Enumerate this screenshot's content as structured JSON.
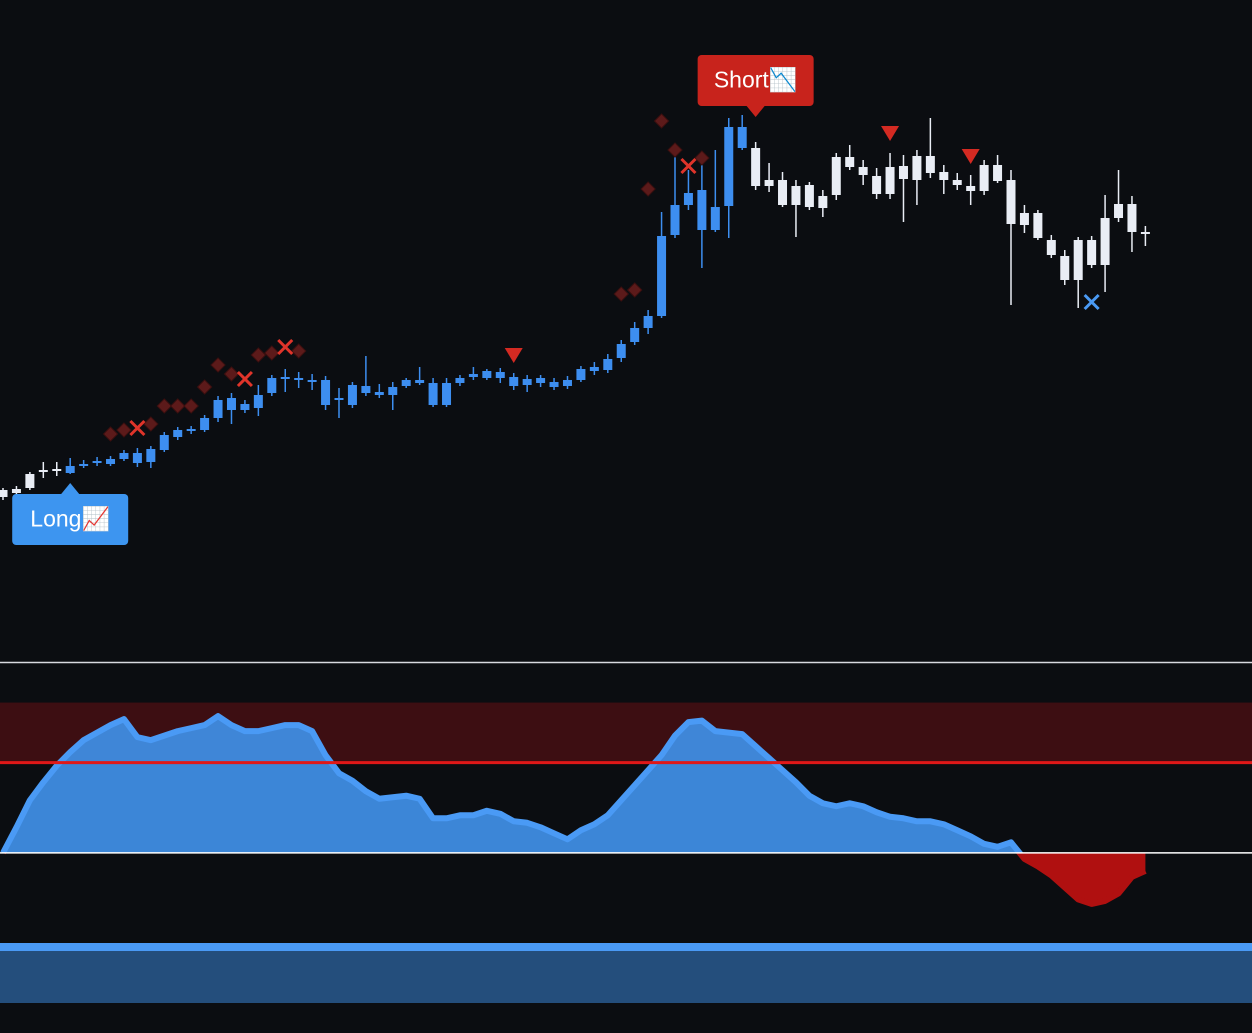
{
  "chart_data": [
    {
      "type": "candlestick",
      "ylim": [
        0,
        660
      ],
      "series": [
        {
          "color": "#e9edf5",
          "x": [
            0,
            1,
            2,
            3,
            4
          ],
          "values": [
            [
              163,
              172,
              160,
              170
            ],
            [
              167,
              174,
              165,
              171
            ],
            [
              172,
              188,
              170,
              186
            ],
            [
              188,
              198,
              182,
              190
            ],
            [
              189,
              198,
              184,
              191
            ]
          ]
        },
        {
          "color": "#3d8ef0",
          "x": [
            5,
            6,
            7,
            8,
            9,
            10,
            11,
            12,
            13,
            14,
            15,
            16,
            17,
            18,
            19,
            20,
            21,
            22,
            23,
            24,
            25,
            26,
            27,
            28,
            29,
            30,
            31,
            32,
            33,
            34,
            35,
            36,
            37,
            38,
            39,
            40,
            41,
            42,
            43,
            44,
            45,
            46,
            47,
            48,
            49,
            50,
            51,
            52,
            53,
            54,
            55
          ],
          "values": [
            [
              187,
              202,
              186,
              194
            ],
            [
              194,
              200,
              192,
              196
            ],
            [
              197,
              203,
              194,
              199
            ],
            [
              196,
              204,
              194,
              201
            ],
            [
              201,
              210,
              199,
              207
            ],
            [
              197,
              212,
              193,
              207
            ],
            [
              198,
              214,
              192,
              211
            ],
            [
              210,
              228,
              208,
              225
            ],
            [
              223,
              233,
              220,
              230
            ],
            [
              229,
              234,
              226,
              231
            ],
            [
              230,
              245,
              228,
              242
            ],
            [
              242,
              264,
              238,
              260
            ],
            [
              250,
              267,
              236,
              262
            ],
            [
              250,
              260,
              247,
              256
            ],
            [
              252,
              275,
              244,
              265
            ],
            [
              267,
              285,
              264,
              282
            ],
            [
              281,
              291,
              268,
              283
            ],
            [
              280,
              288,
              272,
              282
            ],
            [
              278,
              286,
              270,
              280
            ],
            [
              280,
              284,
              250,
              255
            ],
            [
              260,
              272,
              242,
              262
            ],
            [
              255,
              278,
              252,
              275
            ],
            [
              267,
              304,
              264,
              274
            ],
            [
              268,
              276,
              262,
              265
            ],
            [
              265,
              278,
              250,
              273
            ],
            [
              274,
              282,
              272,
              280
            ],
            [
              277,
              293,
              275,
              280
            ],
            [
              277,
              282,
              253,
              255
            ],
            [
              255,
              282,
              253,
              277
            ],
            [
              277,
              285,
              274,
              282
            ],
            [
              283,
              293,
              280,
              286
            ],
            [
              282,
              291,
              280,
              289
            ],
            [
              288,
              292,
              277,
              282
            ],
            [
              283,
              287,
              270,
              274
            ],
            [
              281,
              285,
              268,
              275
            ],
            [
              277,
              285,
              273,
              282
            ],
            [
              278,
              282,
              270,
              273
            ],
            [
              274,
              284,
              271,
              280
            ],
            [
              280,
              294,
              278,
              291
            ],
            [
              289,
              298,
              285,
              293
            ],
            [
              290,
              306,
              287,
              301
            ],
            [
              302,
              320,
              298,
              316
            ],
            [
              318,
              338,
              315,
              332
            ],
            [
              332,
              350,
              326,
              344
            ],
            [
              344,
              448,
              342,
              424
            ],
            [
              425,
              517,
              422,
              455
            ],
            [
              455,
              490,
              450,
              467
            ],
            [
              470,
              500,
              392,
              430
            ],
            [
              430,
              510,
              428,
              453
            ],
            [
              454,
              542,
              422,
              533
            ],
            [
              512,
              545,
              510,
              533
            ]
          ]
        },
        {
          "color": "#e9edf5",
          "x": [
            56,
            57,
            58,
            59,
            60,
            61,
            62,
            63,
            64,
            65,
            66,
            67,
            68,
            69,
            70,
            71,
            72,
            73,
            74,
            75,
            76,
            77,
            78,
            79,
            80,
            81,
            82,
            83,
            84,
            85
          ],
          "values": [
            [
              512,
              518,
              470,
              474
            ],
            [
              480,
              497,
              468,
              474
            ],
            [
              480,
              488,
              453,
              455
            ],
            [
              474,
              480,
              423,
              455
            ],
            [
              453,
              478,
              450,
              475
            ],
            [
              464,
              470,
              443,
              452
            ],
            [
              465,
              507,
              460,
              503
            ],
            [
              503,
              515,
              490,
              493
            ],
            [
              493,
              500,
              475,
              485
            ],
            [
              484,
              492,
              461,
              466
            ],
            [
              466,
              507,
              461,
              493
            ],
            [
              481,
              505,
              438,
              494
            ],
            [
              480,
              510,
              455,
              504
            ],
            [
              504,
              542,
              482,
              487
            ],
            [
              488,
              495,
              466,
              480
            ],
            [
              480,
              487,
              470,
              475
            ],
            [
              474,
              485,
              455,
              469
            ],
            [
              469,
              500,
              465,
              495
            ],
            [
              495,
              505,
              477,
              479
            ],
            [
              480,
              490,
              355,
              436
            ],
            [
              447,
              455,
              427,
              435
            ],
            [
              447,
              450,
              420,
              422
            ],
            [
              420,
              425,
              402,
              405
            ],
            [
              404,
              410,
              375,
              380
            ],
            [
              380,
              423,
              352,
              420
            ],
            [
              395,
              424,
              392,
              420
            ],
            [
              395,
              465,
              368,
              442
            ],
            [
              442,
              490,
              438,
              456
            ],
            [
              456,
              464,
              408,
              428
            ],
            [
              428,
              434,
              414,
              426
            ]
          ]
        }
      ],
      "markers": [
        {
          "shape": "diamond",
          "color": "#5c1a1a",
          "x": [
            8,
            9,
            11,
            12,
            13,
            14,
            15,
            16,
            17,
            19,
            20,
            22,
            46,
            47,
            48,
            49,
            50,
            52
          ],
          "y": [
            226,
            230,
            236,
            254,
            254,
            254,
            273,
            295,
            286,
            305,
            307,
            309,
            366,
            370,
            471,
            539,
            510,
            502
          ]
        },
        {
          "shape": "x",
          "color": "#e0342a",
          "x": [
            10,
            18,
            21,
            51
          ],
          "y": [
            232,
            281,
            313,
            494
          ]
        },
        {
          "shape": "triangle",
          "color": "#d42a22",
          "x": [
            38,
            66,
            72
          ],
          "y": [
            305,
            527,
            504
          ]
        },
        {
          "shape": "x",
          "color": "#4a9af5",
          "x": [
            81
          ],
          "y": [
            358
          ]
        }
      ],
      "annotations": [
        {
          "text": "Long📈",
          "x": 5,
          "y": 177,
          "position": "below",
          "color": "#3d95f0"
        },
        {
          "text": "Short📉",
          "x": 56,
          "y": 543,
          "position": "above",
          "color": "#c8231c"
        }
      ]
    },
    {
      "type": "area",
      "ylim": [
        -60,
        127
      ],
      "color": "#3f8de3",
      "negative_color": "#b01010",
      "zone": [
        60,
        100
      ],
      "zone_color": "#3d0e12",
      "threshold": 60,
      "threshold_color": "#e01818",
      "values": [
        0,
        17,
        35,
        47,
        58,
        67,
        75,
        80,
        85,
        89,
        77,
        75,
        78,
        81,
        83,
        85,
        91,
        85,
        81,
        81,
        83,
        85,
        85,
        81,
        65,
        53,
        48,
        41,
        36,
        37,
        38,
        36,
        23,
        23,
        25,
        25,
        28,
        26,
        21,
        20,
        17,
        13,
        9,
        15,
        19,
        25,
        35,
        45,
        55,
        65,
        78,
        87,
        88,
        81,
        80,
        79,
        71,
        63,
        55,
        47,
        38,
        33,
        31,
        33,
        31,
        27,
        24,
        23,
        21,
        21,
        19,
        15,
        11,
        6,
        4,
        7,
        -4,
        -9,
        -15,
        -23,
        -31,
        -34,
        -32,
        -27,
        -16,
        -12
      ]
    }
  ]
}
